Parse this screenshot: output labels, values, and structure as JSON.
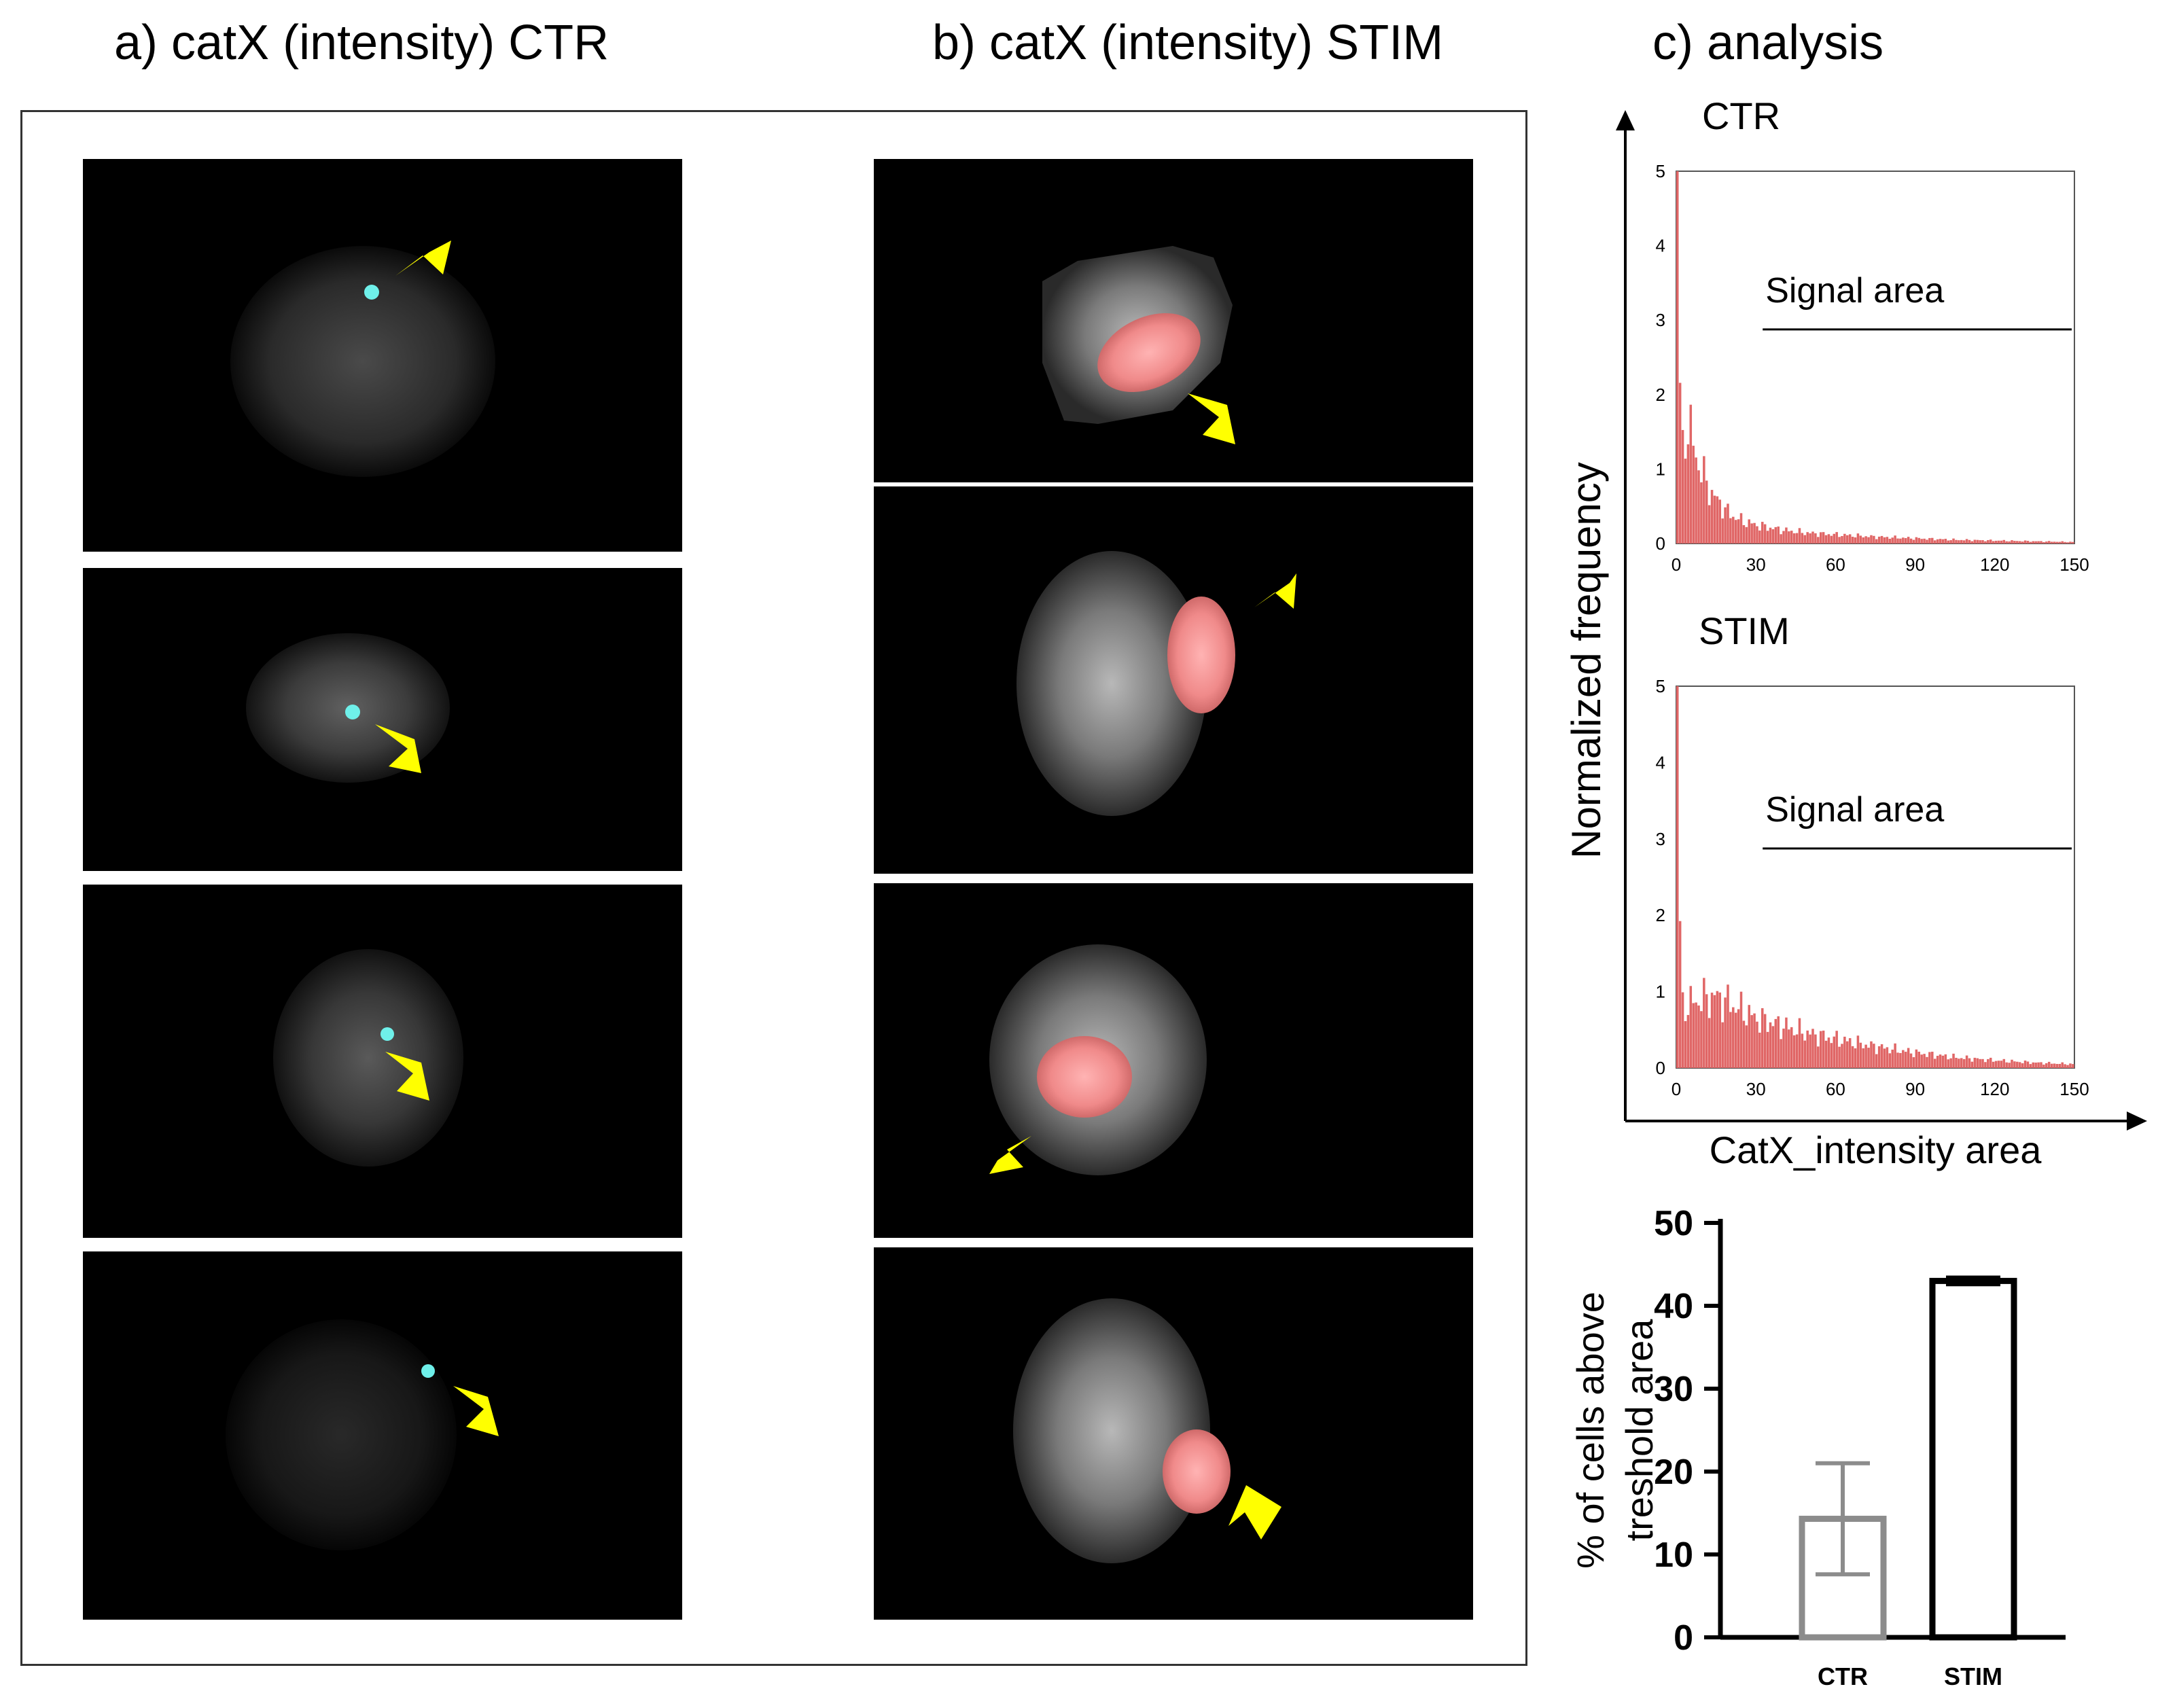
{
  "titles": {
    "a": "a) catX (intensity) CTR",
    "b": "b) catX (intensity) STIM",
    "c": "c) analysis"
  },
  "colors": {
    "histogram": "#e06666",
    "ctr_spot": "#6ff0ea",
    "stim_region": "#f0a0a0",
    "arrow": "#ffff00",
    "ctr_bar": "#8c8c8c",
    "stim_bar": "#000000"
  },
  "micrographs": {
    "ctr": [
      {
        "arrow_icon": "arrow-icon",
        "marker": "cyan-spot"
      },
      {
        "arrow_icon": "arrow-icon",
        "marker": "cyan-spot"
      },
      {
        "arrow_icon": "arrow-icon",
        "marker": "cyan-spot"
      },
      {
        "arrow_icon": "arrow-icon",
        "marker": "cyan-spot"
      }
    ],
    "stim": [
      {
        "arrow_icon": "arrow-icon",
        "marker": "pink-region"
      },
      {
        "arrow_icon": "arrow-icon",
        "marker": "pink-region"
      },
      {
        "arrow_icon": "arrow-icon",
        "marker": "pink-region"
      },
      {
        "arrow_icon": "arrow-icon",
        "marker": "pink-region"
      }
    ]
  },
  "chart_data": [
    {
      "type": "bar",
      "title": "CTR",
      "xlabel": "CatX_intensity area",
      "ylabel": "Normalized frequency",
      "xlim": [
        0,
        150
      ],
      "ylim": [
        0,
        5
      ],
      "xticks": [
        "0",
        "30",
        "60",
        "90",
        "120",
        "150"
      ],
      "yticks": [
        "0",
        "1",
        "2",
        "3",
        "4",
        "5"
      ],
      "annotation": "Signal area",
      "annotation_range": [
        30,
        150
      ],
      "x": [
        0,
        2,
        4,
        6,
        8,
        10,
        12,
        15,
        20,
        25,
        30,
        40,
        50,
        60,
        75,
        90,
        105,
        120,
        135,
        150
      ],
      "values": [
        5.0,
        1.1,
        1.65,
        1.4,
        1.1,
        0.95,
        0.75,
        0.6,
        0.4,
        0.3,
        0.25,
        0.18,
        0.14,
        0.12,
        0.09,
        0.07,
        0.05,
        0.04,
        0.03,
        0.02
      ]
    },
    {
      "type": "bar",
      "title": "STIM",
      "xlim": [
        0,
        150
      ],
      "ylim": [
        0,
        5
      ],
      "xticks": [
        "0",
        "30",
        "60",
        "90",
        "120",
        "150"
      ],
      "yticks": [
        "0",
        "1",
        "2",
        "3",
        "4",
        "5"
      ],
      "annotation": "Signal area",
      "annotation_range": [
        30,
        150
      ],
      "x": [
        0,
        2,
        4,
        6,
        8,
        10,
        12,
        15,
        20,
        25,
        30,
        40,
        50,
        60,
        75,
        90,
        105,
        120,
        135,
        150
      ],
      "values": [
        5.0,
        0.8,
        0.82,
        0.85,
        0.88,
        0.9,
        0.92,
        0.93,
        0.85,
        0.75,
        0.65,
        0.55,
        0.45,
        0.38,
        0.28,
        0.2,
        0.14,
        0.1,
        0.07,
        0.05
      ]
    },
    {
      "type": "bar",
      "ylabel_line1": "% of cells above",
      "ylabel_line2": "treshold area",
      "categories": [
        "CTR",
        "STIM"
      ],
      "values": [
        14.3,
        43
      ],
      "errors": [
        6.7,
        0.4
      ],
      "ylim": [
        0,
        50
      ],
      "yticks": [
        "0",
        "10",
        "20",
        "30",
        "40",
        "50"
      ]
    }
  ]
}
